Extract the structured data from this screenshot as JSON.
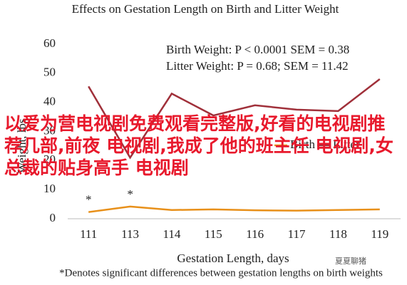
{
  "chart_data": {
    "type": "line",
    "title": "Effects on Gestation Length on Birth and Litter Weight",
    "annotations": [
      "Birth Weight: P < 0.0001 SEM = 0.38",
      "Litter Weight: P = 0.68; SEM = 11.42"
    ],
    "x_label": "Gestation Length, days",
    "y_label": "Weight, lbs",
    "footnote": "*Denotes significant differences between gestation lengths on birth weights",
    "categories": [
      "111",
      "113",
      "114",
      "115",
      "116",
      "117",
      "118",
      "119"
    ],
    "series": [
      {
        "name": "Birth",
        "color": "#e8901a",
        "values": [
          2.3,
          4.2,
          3.0,
          3.2,
          2.9,
          2.8,
          3.0,
          3.2
        ],
        "markers": [
          "*",
          "*",
          null,
          null,
          null,
          null,
          null,
          null
        ]
      },
      {
        "name": "Litter",
        "color": "#a0303a",
        "values": [
          45.5,
          21,
          43,
          35.5,
          39,
          37.5,
          37,
          48
        ]
      }
    ],
    "ylim": [
      0,
      60
    ],
    "yticks": [
      0,
      10,
      20,
      30,
      40,
      50,
      60
    ],
    "grid": false
  },
  "overlay_text": "以爱为营电视剧免费观看完整版,好看的电视剧推荐几部,前夜 电视剧,我成了他的班主任 电视剧,女总裁的贴身高手 电视剧",
  "watermark": "夏夏聊猪"
}
